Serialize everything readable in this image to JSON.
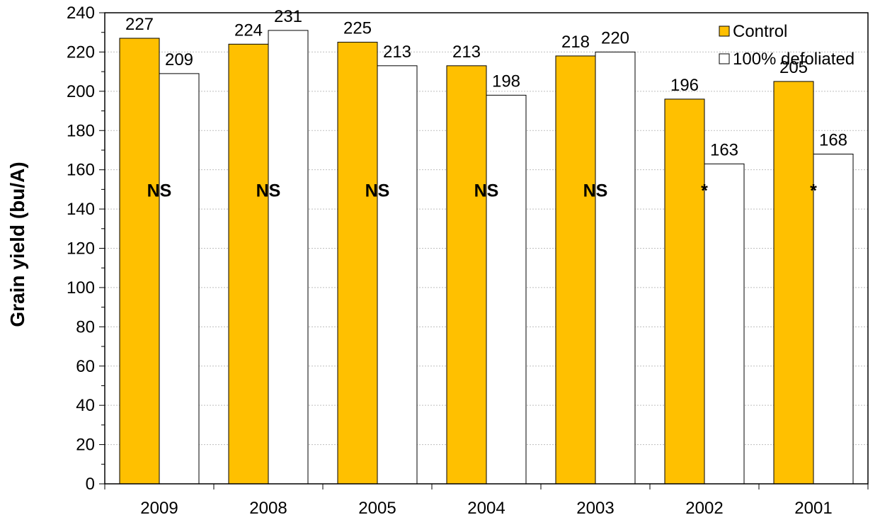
{
  "chart_data": {
    "type": "bar",
    "categories": [
      "2009",
      "2008",
      "2005",
      "2004",
      "2003",
      "2002",
      "2001"
    ],
    "series": [
      {
        "name": "Control",
        "color": "#FFC000",
        "values": [
          227,
          224,
          225,
          213,
          218,
          196,
          205
        ]
      },
      {
        "name": "100% defoliated",
        "color": "#FFFFFF",
        "values": [
          209,
          231,
          213,
          198,
          220,
          163,
          168
        ]
      }
    ],
    "significance": [
      "NS",
      "NS",
      "NS",
      "NS",
      "NS",
      "*",
      "*"
    ],
    "title": "",
    "xlabel": "",
    "ylabel": "Grain yield (bu/A)",
    "ylim": [
      0,
      240
    ],
    "yticks": [
      0,
      20,
      40,
      60,
      80,
      100,
      120,
      140,
      160,
      180,
      200,
      220,
      240
    ],
    "significance_level": 150,
    "grid": true,
    "legend_position": "top-right"
  }
}
